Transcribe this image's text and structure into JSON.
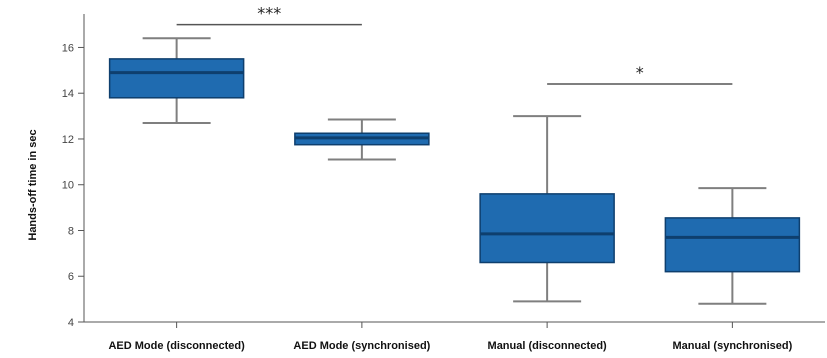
{
  "chart_data": {
    "type": "box",
    "ylabel": "Hands-off time in sec",
    "xlabel": "",
    "ylim": [
      4,
      17.2
    ],
    "yticks": [
      4,
      6,
      8,
      10,
      12,
      14,
      16
    ],
    "grid": false,
    "categories": [
      "AED Mode (disconnected)",
      "AED Mode (synchronised)",
      "Manual (disconnected)",
      "Manual (synchronised)"
    ],
    "boxes": [
      {
        "min": 12.7,
        "q1": 13.8,
        "median": 14.9,
        "q3": 15.5,
        "max": 16.4
      },
      {
        "min": 11.1,
        "q1": 11.75,
        "median": 12.05,
        "q3": 12.25,
        "max": 12.85
      },
      {
        "min": 4.9,
        "q1": 6.6,
        "median": 7.85,
        "q3": 9.6,
        "max": 13.0
      },
      {
        "min": 4.8,
        "q1": 6.2,
        "median": 7.7,
        "q3": 8.55,
        "max": 9.85
      }
    ],
    "significance": [
      {
        "from": 0,
        "to": 1,
        "y": 17.0,
        "label": "***"
      },
      {
        "from": 2,
        "to": 3,
        "y": 14.4,
        "label": "*"
      }
    ],
    "colors": {
      "box_fill": "#1f6bb0",
      "box_stroke": "#0e3f6e",
      "whisker": "#7f7f7f",
      "axis": "#555555"
    }
  }
}
